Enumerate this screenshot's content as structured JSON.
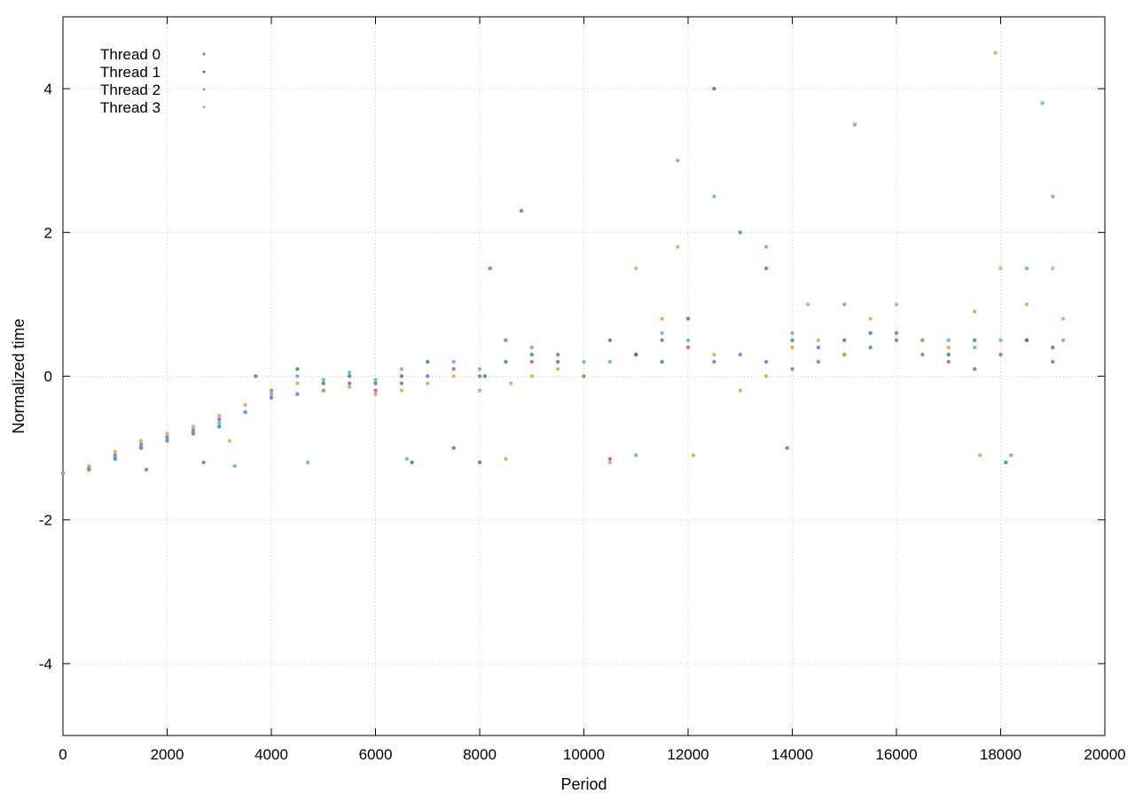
{
  "chart_data": {
    "type": "scatter",
    "title": "",
    "xlabel": "Period",
    "ylabel": "Normalized time",
    "xlim": [
      0,
      20000
    ],
    "ylim": [
      -5,
      5
    ],
    "x_ticks": [
      0,
      2000,
      4000,
      6000,
      8000,
      10000,
      12000,
      14000,
      16000,
      18000,
      20000
    ],
    "y_ticks": [
      -4,
      -2,
      0,
      2,
      4
    ],
    "grid": true,
    "legend_position": "top-left",
    "series": [
      {
        "name": "Thread 0",
        "color": "#9b50c8",
        "points": [
          [
            0,
            -1.35
          ],
          [
            500,
            -1.28
          ],
          [
            1000,
            -1.1
          ],
          [
            1500,
            -0.95
          ],
          [
            1600,
            -1.3
          ],
          [
            2000,
            -0.85
          ],
          [
            2500,
            -0.75
          ],
          [
            2700,
            -1.2
          ],
          [
            3000,
            -0.6
          ],
          [
            3500,
            -0.5
          ],
          [
            4000,
            -0.3
          ],
          [
            4500,
            -0.25
          ],
          [
            5000,
            -0.2
          ],
          [
            5500,
            -0.1
          ],
          [
            6000,
            -0.2
          ],
          [
            6500,
            -0.1
          ],
          [
            7000,
            0.0
          ],
          [
            7500,
            0.1
          ],
          [
            8000,
            0.0
          ],
          [
            8200,
            1.5
          ],
          [
            8500,
            0.5
          ],
          [
            8800,
            2.3
          ],
          [
            9000,
            0.2
          ],
          [
            9500,
            0.3
          ],
          [
            10000,
            0.0
          ],
          [
            10500,
            -1.15
          ],
          [
            11000,
            0.3
          ],
          [
            11500,
            0.5
          ],
          [
            12000,
            0.4
          ],
          [
            12500,
            0.2
          ],
          [
            13000,
            0.3
          ],
          [
            13500,
            0.2
          ],
          [
            14000,
            0.1
          ],
          [
            14500,
            0.2
          ],
          [
            15000,
            0.3
          ],
          [
            15500,
            0.4
          ],
          [
            16000,
            0.5
          ],
          [
            16500,
            0.3
          ],
          [
            17000,
            0.2
          ],
          [
            17500,
            0.1
          ],
          [
            18000,
            0.3
          ],
          [
            18500,
            0.5
          ],
          [
            19000,
            0.2
          ]
        ]
      },
      {
        "name": "Thread 1",
        "color": "#2e8b57",
        "points": [
          [
            0,
            -1.35
          ],
          [
            500,
            -1.3
          ],
          [
            1000,
            -1.15
          ],
          [
            1500,
            -1.0
          ],
          [
            2000,
            -0.9
          ],
          [
            2500,
            -0.8
          ],
          [
            3000,
            -0.7
          ],
          [
            3700,
            0.0
          ],
          [
            4000,
            -0.2
          ],
          [
            4500,
            0.1
          ],
          [
            5000,
            -0.1
          ],
          [
            5500,
            0.0
          ],
          [
            6000,
            -0.1
          ],
          [
            6500,
            0.0
          ],
          [
            6700,
            -1.2
          ],
          [
            7000,
            0.2
          ],
          [
            7500,
            -1.0
          ],
          [
            8000,
            -1.2
          ],
          [
            8100,
            0.0
          ],
          [
            8500,
            0.2
          ],
          [
            9000,
            0.3
          ],
          [
            9500,
            0.2
          ],
          [
            10000,
            0.0
          ],
          [
            10500,
            0.5
          ],
          [
            11000,
            0.3
          ],
          [
            11500,
            0.2
          ],
          [
            12000,
            0.8
          ],
          [
            12500,
            4.0
          ],
          [
            13000,
            2.0
          ],
          [
            13500,
            1.5
          ],
          [
            13900,
            -1.0
          ],
          [
            14000,
            0.5
          ],
          [
            14500,
            0.4
          ],
          [
            15000,
            0.5
          ],
          [
            15500,
            0.6
          ],
          [
            16000,
            0.6
          ],
          [
            16500,
            0.5
          ],
          [
            17000,
            0.3
          ],
          [
            17500,
            0.5
          ],
          [
            18100,
            -1.2
          ],
          [
            18500,
            0.5
          ],
          [
            19000,
            0.4
          ]
        ]
      },
      {
        "name": "Thread 2",
        "color": "#56a8e0",
        "points": [
          [
            0,
            -1.35
          ],
          [
            500,
            -1.28
          ],
          [
            1000,
            -1.12
          ],
          [
            1500,
            -0.98
          ],
          [
            2000,
            -0.88
          ],
          [
            2500,
            -0.78
          ],
          [
            3000,
            -0.65
          ],
          [
            3300,
            -1.25
          ],
          [
            3500,
            -0.5
          ],
          [
            4000,
            -0.25
          ],
          [
            4500,
            0.0
          ],
          [
            4700,
            -1.2
          ],
          [
            5000,
            -0.05
          ],
          [
            5500,
            0.05
          ],
          [
            6000,
            -0.05
          ],
          [
            6500,
            0.1
          ],
          [
            6600,
            -1.15
          ],
          [
            7000,
            0.0
          ],
          [
            7500,
            0.2
          ],
          [
            8000,
            0.1
          ],
          [
            8500,
            0.5
          ],
          [
            9000,
            0.4
          ],
          [
            9500,
            0.3
          ],
          [
            10000,
            0.2
          ],
          [
            10500,
            0.2
          ],
          [
            11000,
            -1.1
          ],
          [
            11500,
            0.6
          ],
          [
            11800,
            3.0
          ],
          [
            12000,
            0.5
          ],
          [
            12500,
            2.5
          ],
          [
            13000,
            2.0
          ],
          [
            13500,
            1.8
          ],
          [
            14000,
            0.6
          ],
          [
            14500,
            0.4
          ],
          [
            15000,
            1.0
          ],
          [
            15200,
            3.5
          ],
          [
            15500,
            0.4
          ],
          [
            16000,
            0.6
          ],
          [
            16500,
            0.5
          ],
          [
            17000,
            0.5
          ],
          [
            17500,
            0.4
          ],
          [
            18000,
            0.5
          ],
          [
            18200,
            -1.1
          ],
          [
            18500,
            1.5
          ],
          [
            18800,
            3.8
          ],
          [
            19000,
            2.5
          ],
          [
            19200,
            0.5
          ]
        ]
      },
      {
        "name": "Thread 3",
        "color": "#d4a43a",
        "points": [
          [
            0,
            -1.35
          ],
          [
            500,
            -1.25
          ],
          [
            1000,
            -1.05
          ],
          [
            1500,
            -0.9
          ],
          [
            2000,
            -0.8
          ],
          [
            2500,
            -0.7
          ],
          [
            3000,
            -0.55
          ],
          [
            3200,
            -0.9
          ],
          [
            3500,
            -0.4
          ],
          [
            4000,
            -0.2
          ],
          [
            4500,
            -0.1
          ],
          [
            5000,
            -0.2
          ],
          [
            5500,
            -0.15
          ],
          [
            6000,
            -0.25
          ],
          [
            6500,
            -0.2
          ],
          [
            7000,
            -0.1
          ],
          [
            7500,
            0.0
          ],
          [
            8000,
            -0.2
          ],
          [
            8500,
            -1.15
          ],
          [
            8600,
            -0.1
          ],
          [
            9000,
            0.0
          ],
          [
            9500,
            0.1
          ],
          [
            10000,
            0.0
          ],
          [
            10500,
            -1.2
          ],
          [
            11000,
            1.5
          ],
          [
            11500,
            0.8
          ],
          [
            11800,
            1.8
          ],
          [
            12100,
            -1.1
          ],
          [
            12500,
            0.3
          ],
          [
            13000,
            -0.2
          ],
          [
            13500,
            0.0
          ],
          [
            14000,
            0.4
          ],
          [
            14300,
            1.0
          ],
          [
            14500,
            0.5
          ],
          [
            15000,
            0.3
          ],
          [
            15500,
            0.8
          ],
          [
            16000,
            1.0
          ],
          [
            16500,
            0.5
          ],
          [
            17000,
            0.4
          ],
          [
            17500,
            0.9
          ],
          [
            17600,
            -1.1
          ],
          [
            17900,
            4.5
          ],
          [
            18000,
            1.5
          ],
          [
            18500,
            1.0
          ],
          [
            19000,
            1.5
          ],
          [
            19200,
            0.8
          ]
        ]
      }
    ]
  }
}
